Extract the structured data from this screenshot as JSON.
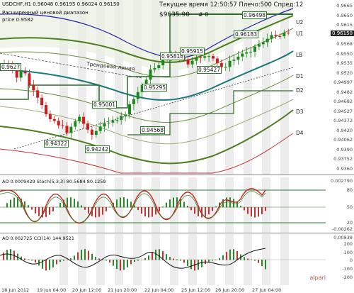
{
  "header": {
    "symbol_line": "USDCHF,H1  0.96048 0.96195 0.96024 0.96150",
    "indicator_line_1": "Расширенный ценовой диапазон",
    "indicator_line_2": "рrice 0.9582",
    "trade_info": "Текущее время 12:50:57 Плечо:500 Спред:12",
    "price_level_label": "$9635.90",
    "price_level_sub": "# 0"
  },
  "levels": [
    "U2",
    "U1",
    "LB",
    "D1",
    "D2",
    "D3",
    "D4"
  ],
  "price_boxes": [
    "0.9627",
    "0.95001",
    "0.94322",
    "0.94242",
    "0.94568",
    "0.95295",
    "0.95818",
    "0.95915",
    "0.95427",
    "0.96183",
    "0.96498"
  ],
  "trend_label": "Трендовая линия",
  "current_price": "0.96150",
  "main_axis": [
    "0.9665",
    "0.9650",
    "0.9615",
    "0.95927",
    "0.9568",
    "0.9550",
    "0.9535",
    "0.9520",
    "0.94997",
    "0.9482",
    "0.94682",
    "0.94527",
    "0.94372",
    "0.9420",
    "0.94062",
    "0.9390",
    "0.93752",
    "0.9360"
  ],
  "stoch": {
    "label": "AO 0.0009429  Stoch(5,3,3) 80.5684 80.1259",
    "axis": [
      "0.002790",
      "80",
      "50",
      "20",
      "-0.00262"
    ]
  },
  "cci": {
    "label": "AO 0.002725  CCI(14) 144.9521",
    "axis": [
      "0.00838",
      "200",
      "100",
      "0",
      "-100",
      "-200"
    ]
  },
  "dates": [
    "18 Jun 2012",
    "19 Jun 04:00",
    "20 Jun 12:00",
    "21 Jun 20:00",
    "22 Jun 04:00",
    "25 Jun 12:00",
    "26 Jun 20:00",
    "27 Jun 04:00"
  ],
  "watermark": "alpari",
  "colors": {
    "bull": "#1a8a1a",
    "bear": "#d21a1a",
    "band": "#5f8a2a",
    "fill_band": "#dfe7d2",
    "blue_curve": "#3030c8",
    "teal": "#1a7a7a"
  }
}
